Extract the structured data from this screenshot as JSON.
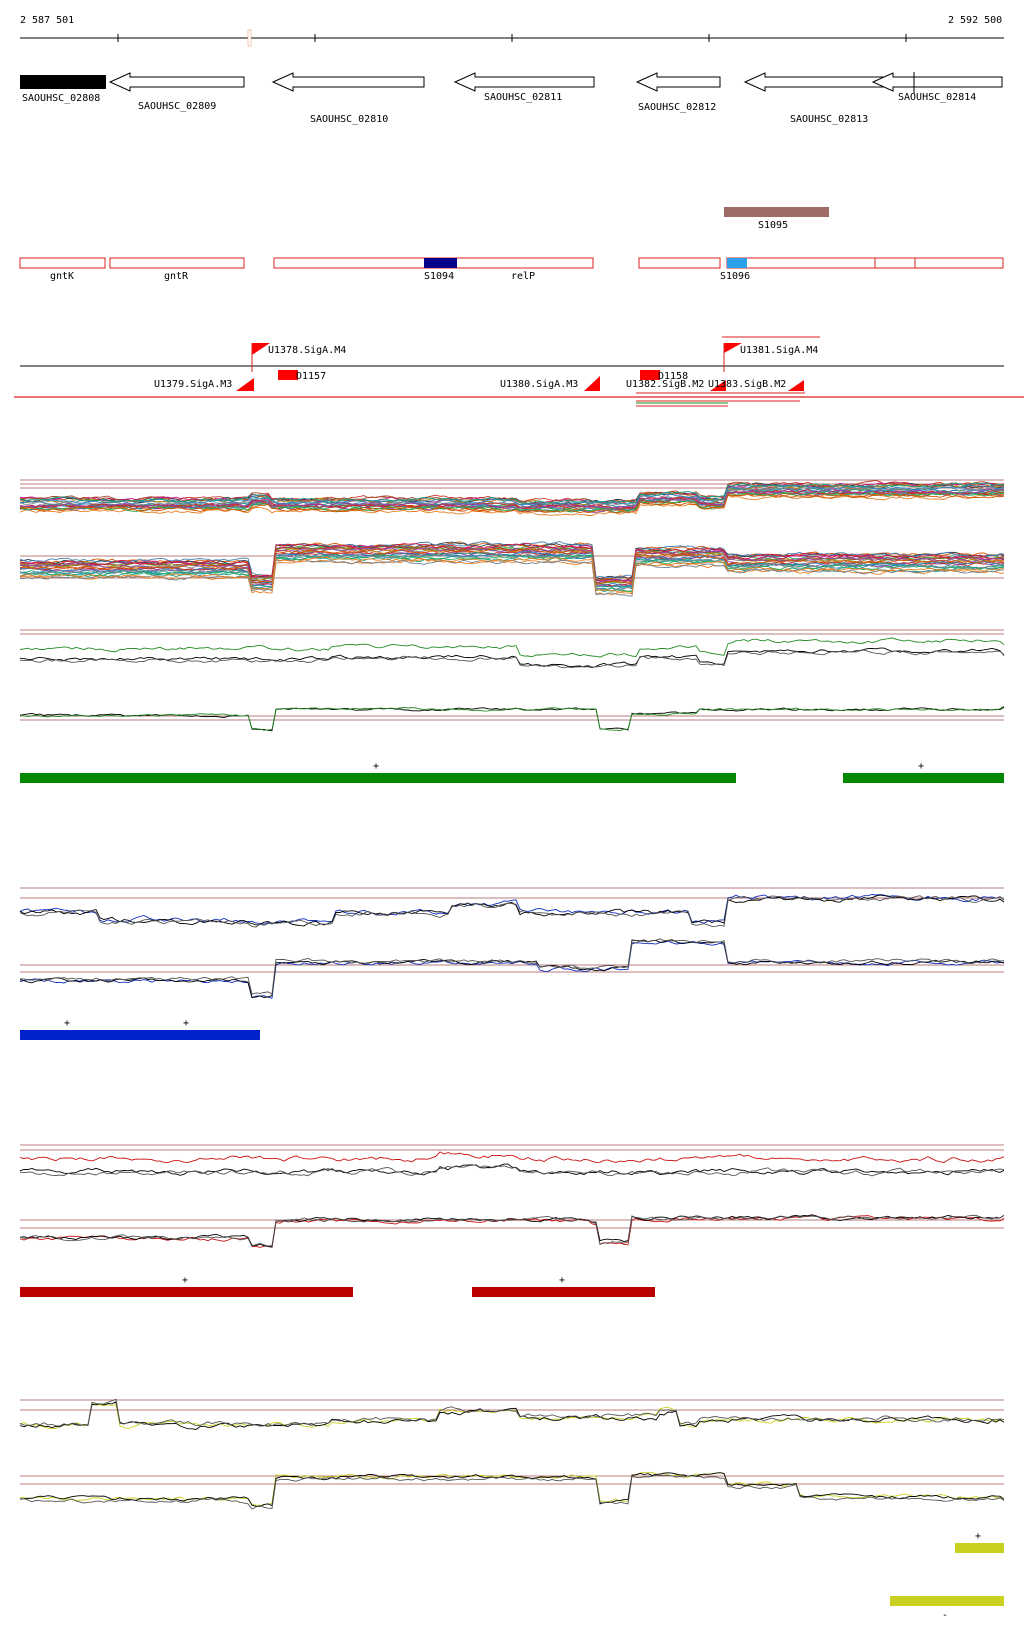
{
  "ruler": {
    "start_label": "2 587 501",
    "end_label": "2 592 500"
  },
  "genes": [
    {
      "label": "SAOUHSC_02808",
      "style": "solid"
    },
    {
      "label": "SAOUHSC_02809",
      "style": "arrow"
    },
    {
      "label": "SAOUHSC_02810",
      "style": "arrow"
    },
    {
      "label": "SAOUHSC_02811",
      "style": "arrow"
    },
    {
      "label": "SAOUHSC_02812",
      "style": "arrow"
    },
    {
      "label": "SAOUHSC_02813",
      "style": "arrow"
    },
    {
      "label": "SAOUHSC_02814",
      "style": "arrow"
    }
  ],
  "annotations": {
    "s1095_label": "S1095",
    "gntK_label": "gntK",
    "gntR_label": "gntR",
    "s1094_label": "S1094",
    "relP_label": "relP",
    "s1096_label": "S1096"
  },
  "promoters": [
    {
      "label": "U1378.SigA.M4"
    },
    {
      "label": "U1379.SigA.M3"
    },
    {
      "label": "D1157"
    },
    {
      "label": "U1380.SigA.M3"
    },
    {
      "label": "D1158"
    },
    {
      "label": "U1381.SigA.M4"
    },
    {
      "label": "U1382.SigB.M2"
    },
    {
      "label": "U1383.SigB.M2"
    }
  ],
  "panels": [
    {
      "name": "multi-condition",
      "color": "#228b22",
      "bar_color": "#008800",
      "marks": [
        "+",
        "+"
      ]
    },
    {
      "name": "blue-condition",
      "color": "#1030c0",
      "bar_color": "#0022cc",
      "marks": [
        "+",
        "+"
      ]
    },
    {
      "name": "red-condition",
      "color": "#cc1111",
      "bar_color": "#bb0000",
      "marks": [
        "+",
        "+"
      ]
    },
    {
      "name": "yellow-condition",
      "color": "#c8d020",
      "bar_color": "#c8d020",
      "marks": [
        "+",
        "-"
      ]
    }
  ]
}
